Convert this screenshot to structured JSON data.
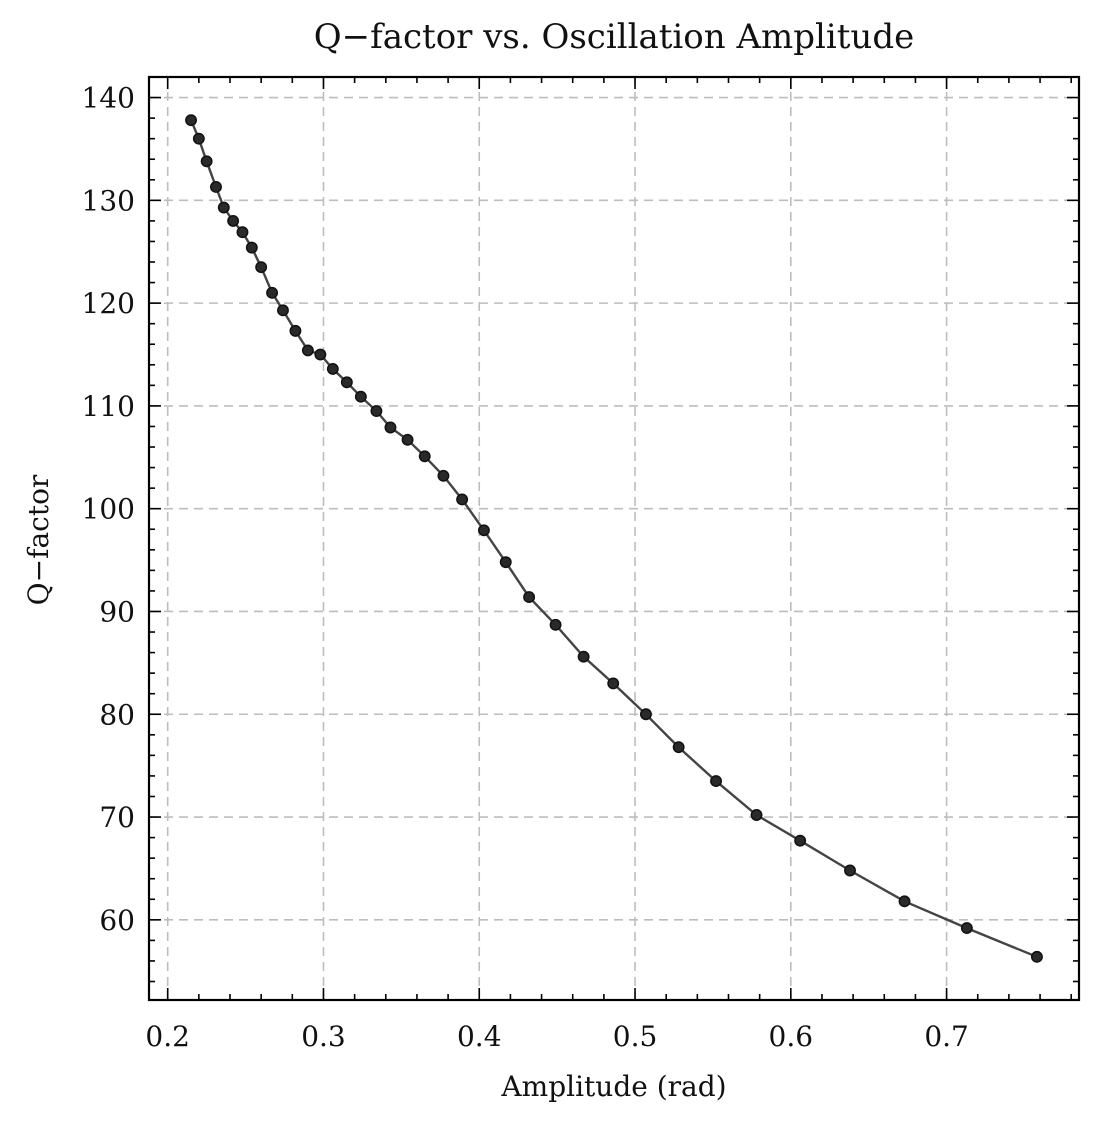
{
  "chart_data": {
    "type": "line",
    "title": "Q−factor vs. Oscillation Amplitude",
    "xlabel": "Amplitude (rad)",
    "ylabel": "Q−factor",
    "xlim": [
      0.188,
      0.785
    ],
    "ylim": [
      52.2,
      142.0
    ],
    "xticks": [
      0.2,
      0.3,
      0.4,
      0.5,
      0.6,
      0.7
    ],
    "xtick_labels": [
      "0.2",
      "0.3",
      "0.4",
      "0.5",
      "0.6",
      "0.7"
    ],
    "yticks": [
      60,
      70,
      80,
      90,
      100,
      110,
      120,
      130,
      140
    ],
    "ytick_labels": [
      "60",
      "70",
      "80",
      "90",
      "100",
      "110",
      "120",
      "130",
      "140"
    ],
    "grid": true,
    "line_color": "#444444",
    "marker_color": "#2a2a2a",
    "series": [
      {
        "x": [
          0.215,
          0.22,
          0.225,
          0.231,
          0.236,
          0.242,
          0.248,
          0.254,
          0.26,
          0.267,
          0.274,
          0.282,
          0.29,
          0.298,
          0.306,
          0.315,
          0.324,
          0.334,
          0.343,
          0.354,
          0.365,
          0.377,
          0.389,
          0.403,
          0.417,
          0.432,
          0.449,
          0.467,
          0.486,
          0.507,
          0.528,
          0.552,
          0.578,
          0.606,
          0.638,
          0.673,
          0.713,
          0.758
        ],
        "y": [
          137.8,
          136.0,
          133.8,
          131.3,
          129.3,
          128.0,
          126.9,
          125.4,
          123.5,
          121.0,
          119.3,
          117.3,
          115.4,
          115.0,
          113.6,
          112.3,
          110.9,
          109.5,
          107.9,
          106.7,
          105.1,
          103.2,
          100.9,
          97.9,
          94.8,
          91.4,
          88.7,
          85.6,
          83.0,
          80.0,
          76.8,
          73.5,
          70.2,
          67.7,
          64.8,
          61.8,
          59.2,
          56.4
        ]
      }
    ]
  }
}
